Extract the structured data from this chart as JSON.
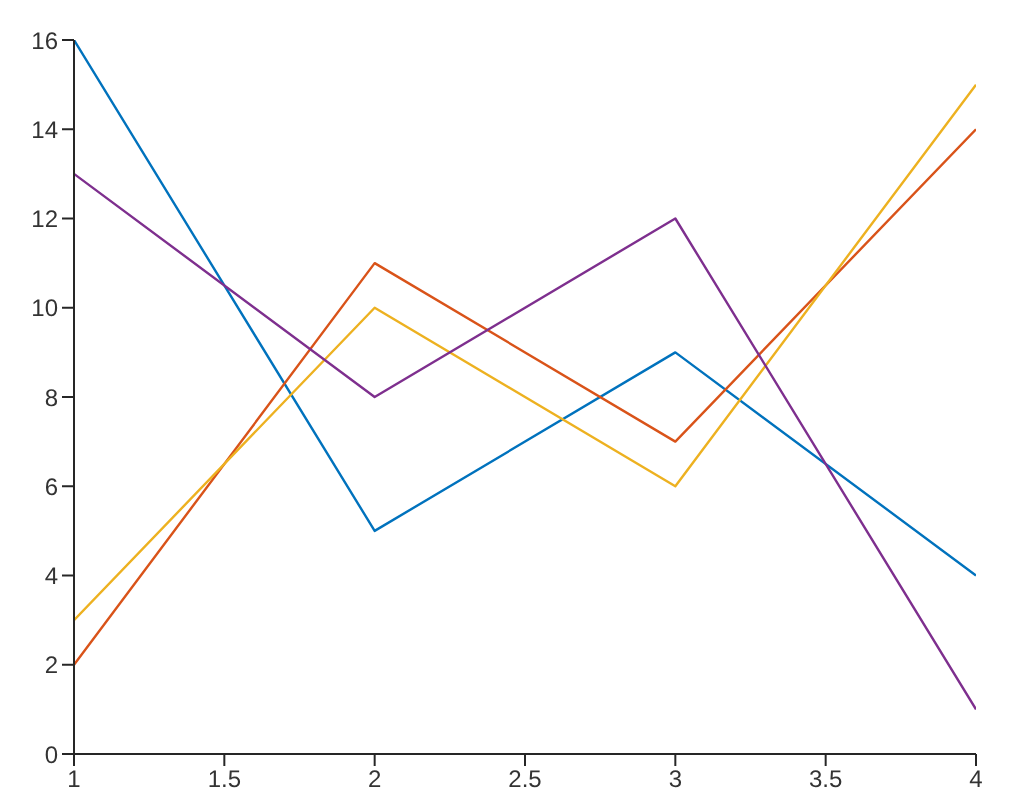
{
  "chart_data": {
    "type": "line",
    "x": [
      1,
      2,
      3,
      4
    ],
    "series": [
      {
        "color": "#0072bd",
        "values": [
          16,
          5,
          9,
          4
        ]
      },
      {
        "color": "#d95319",
        "values": [
          2,
          11,
          7,
          14
        ]
      },
      {
        "color": "#edb120",
        "values": [
          3,
          10,
          6,
          15
        ]
      },
      {
        "color": "#7e2f8e",
        "values": [
          13,
          8,
          12,
          1
        ]
      }
    ],
    "xlim": [
      1,
      4
    ],
    "xticks": [
      1,
      1.5,
      2,
      2.5,
      3,
      3.5,
      4
    ],
    "ylim": [
      0,
      16
    ],
    "yticks": [
      0,
      2,
      4,
      6,
      8,
      10,
      12,
      14,
      16
    ],
    "grid": false,
    "legend": false,
    "marker": "none",
    "line_style": "solid"
  }
}
